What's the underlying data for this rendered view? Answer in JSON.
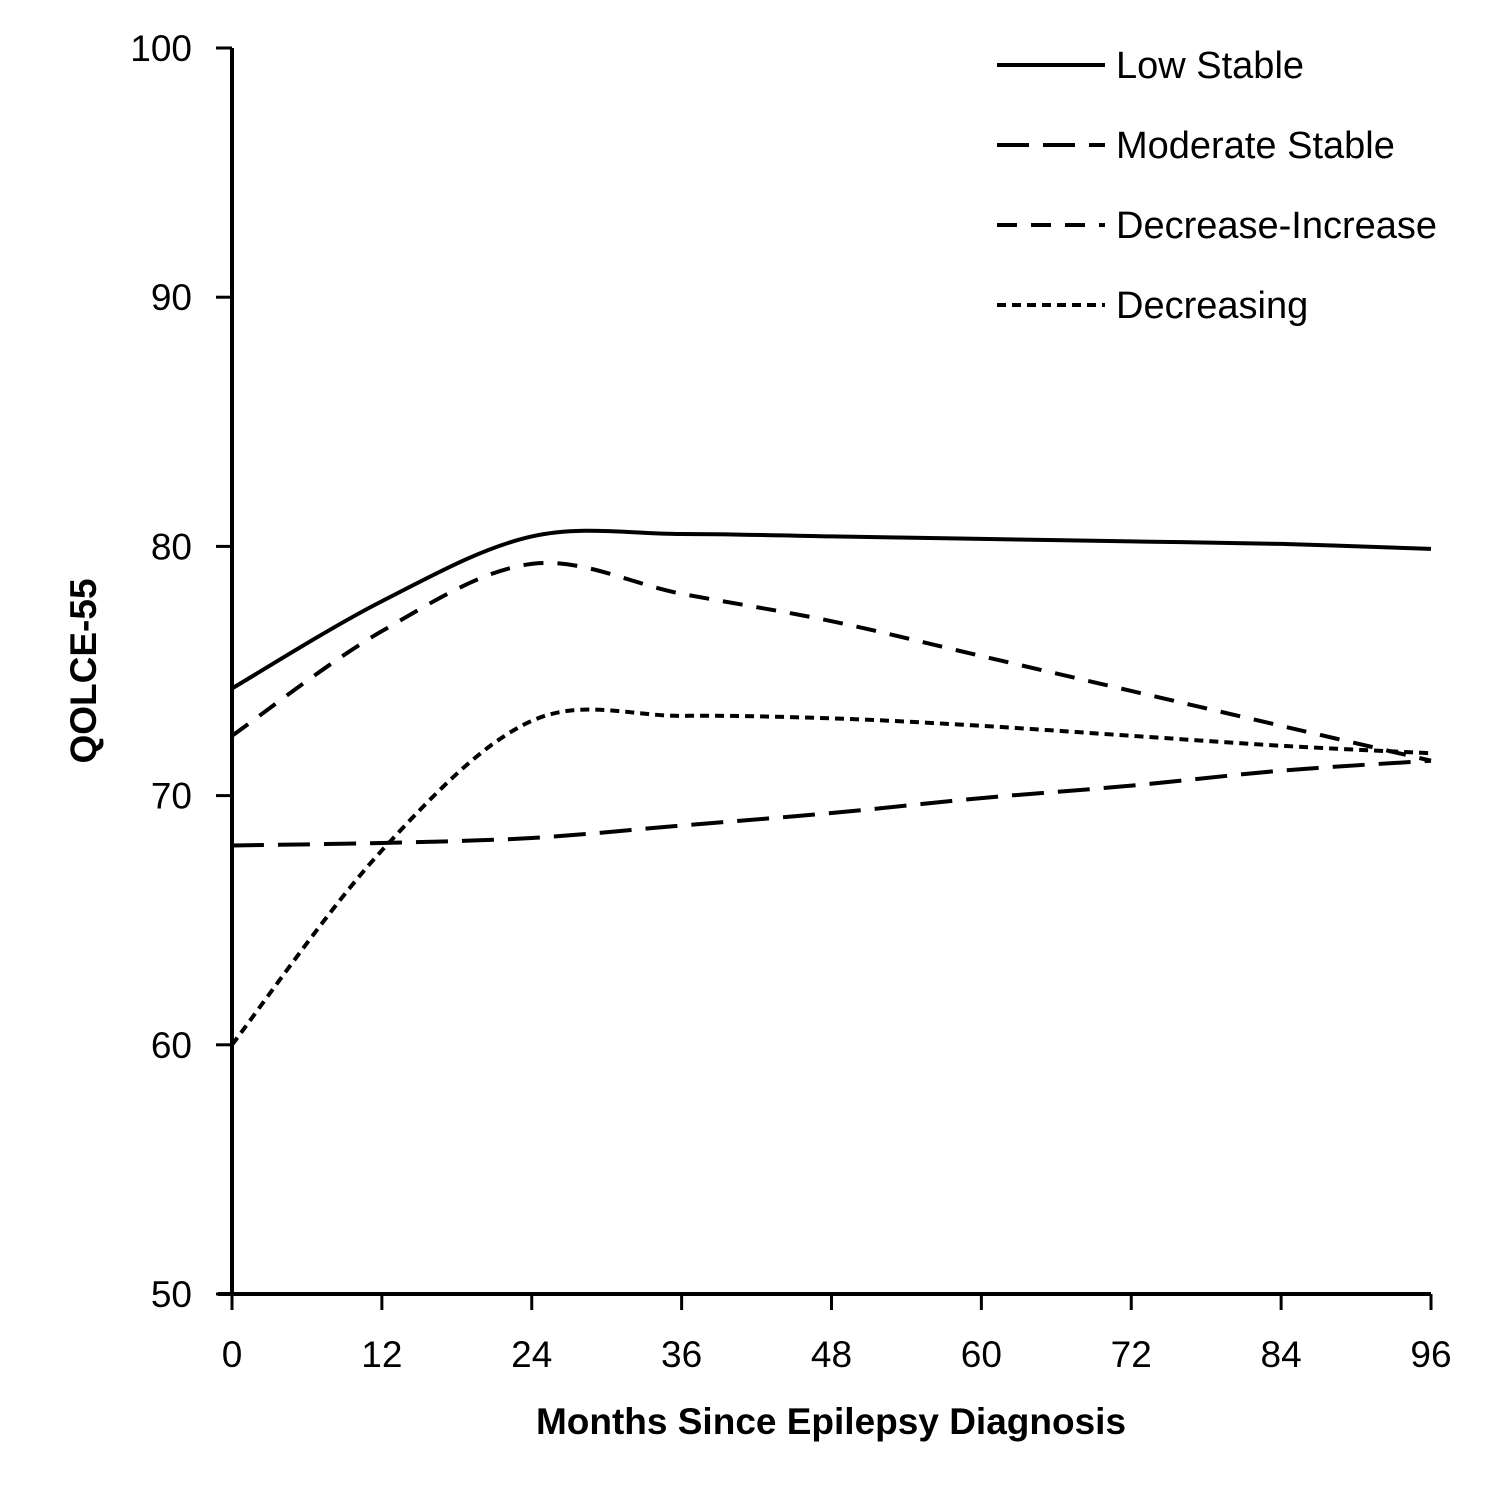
{
  "chart_data": {
    "type": "line",
    "title": "",
    "xlabel": "Months Since Epilepsy Diagnosis",
    "ylabel": "QOLCE-55",
    "xlim": [
      0,
      96
    ],
    "ylim": [
      50,
      100
    ],
    "x_ticks": [
      0,
      12,
      24,
      36,
      48,
      60,
      72,
      84,
      96
    ],
    "y_ticks": [
      50,
      60,
      70,
      80,
      90,
      100
    ],
    "grid": false,
    "legend_position": "top-right",
    "x": [
      0,
      12,
      24,
      36,
      48,
      60,
      72,
      84,
      96
    ],
    "series": [
      {
        "name": "Low Stable",
        "style": "solid",
        "color": "#000000",
        "values": [
          74.3,
          77.8,
          80.4,
          80.5,
          80.4,
          80.3,
          80.2,
          80.1,
          79.9
        ]
      },
      {
        "name": "Moderate Stable",
        "style": "long-dash",
        "color": "#000000",
        "values": [
          68.0,
          68.1,
          68.3,
          68.8,
          69.3,
          69.9,
          70.4,
          71.0,
          71.4
        ]
      },
      {
        "name": "Decrease-Increase",
        "style": "dash",
        "color": "#000000",
        "values": [
          72.4,
          76.6,
          79.3,
          78.1,
          77.0,
          75.6,
          74.2,
          72.8,
          71.4
        ]
      },
      {
        "name": "Decreasing",
        "style": "short-dash",
        "color": "#000000",
        "values": [
          60.0,
          67.8,
          73.0,
          73.2,
          73.1,
          72.8,
          72.4,
          72.0,
          71.7
        ]
      }
    ]
  }
}
